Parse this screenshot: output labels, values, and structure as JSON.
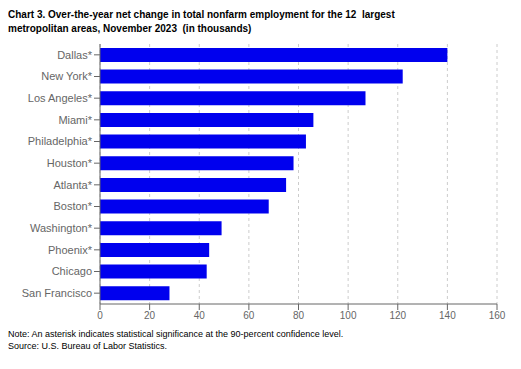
{
  "chart_data": {
    "type": "bar",
    "orientation": "horizontal",
    "title": "Chart 3. Over-the-year net change in total nonfarm employment for the 12  largest\nmetropolitan areas, November 2023  (in thousands)",
    "categories": [
      "San Francisco",
      "Chicago",
      "Phoenix*",
      "Washington*",
      "Boston*",
      "Atlanta*",
      "Houston*",
      "Philadelphia*",
      "Miami*",
      "Los Angeles*",
      "New York*",
      "Dallas*"
    ],
    "values": [
      28,
      43,
      44,
      49,
      68,
      75,
      78,
      83,
      86,
      107,
      122,
      140
    ],
    "color": "#0000ee",
    "xlim": [
      0,
      160
    ],
    "xticks": [
      0,
      20,
      40,
      60,
      80,
      100,
      120,
      140,
      160
    ],
    "grid": true,
    "annotations": [
      "Note: An asterisk indicates statistical significance at the 90-percent confidence level.",
      "Source: U.S. Bureau of Labor Statistics."
    ]
  }
}
